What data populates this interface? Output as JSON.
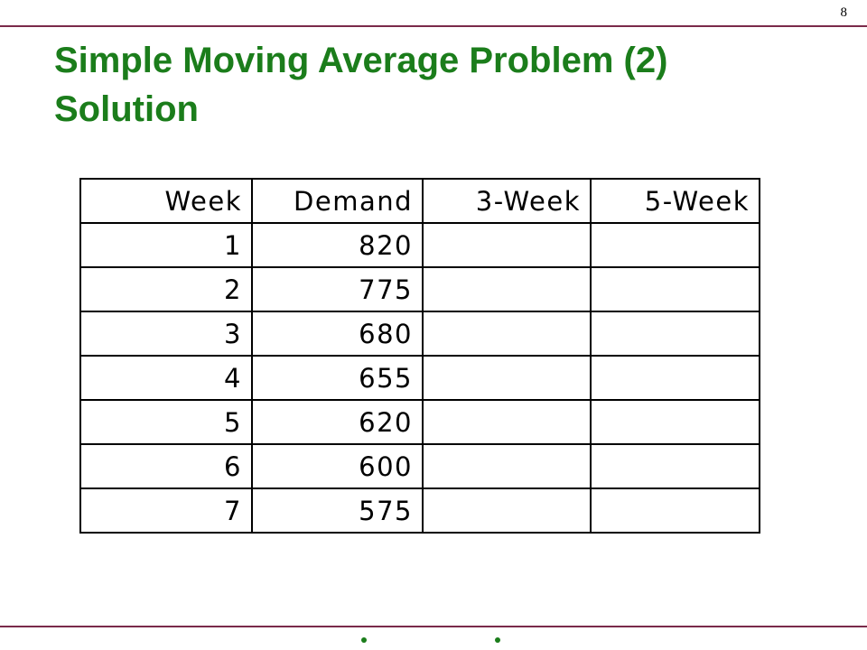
{
  "slide": {
    "number": "8",
    "title_line1": "Simple Moving Average Problem (2)",
    "title_line2": "Solution",
    "accent_color": "#1b7d1b",
    "rule_color": "#7a2a4a"
  },
  "table": {
    "headers": [
      "Week",
      "Demand",
      "3-Week",
      "5-Week"
    ],
    "rows": [
      [
        "1",
        "820",
        "",
        ""
      ],
      [
        "2",
        "775",
        "",
        ""
      ],
      [
        "3",
        "680",
        "",
        ""
      ],
      [
        "4",
        "655",
        "",
        ""
      ],
      [
        "5",
        "620",
        "",
        ""
      ],
      [
        "6",
        "600",
        "",
        ""
      ],
      [
        "7",
        "575",
        "",
        ""
      ]
    ]
  }
}
